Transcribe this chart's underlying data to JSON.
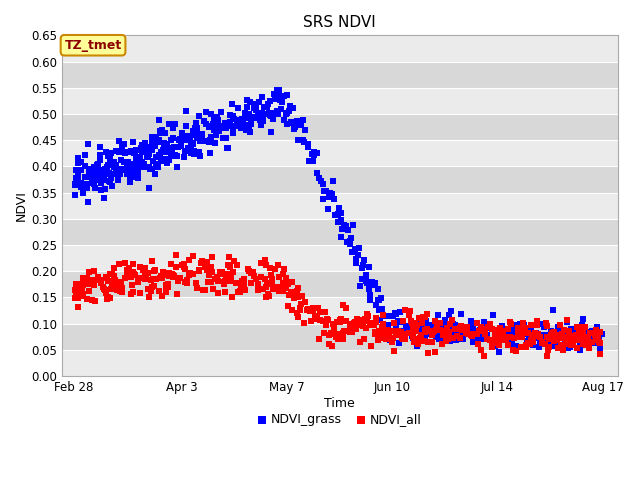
{
  "title": "SRS NDVI",
  "xlabel": "Time",
  "ylabel": "NDVI",
  "ylim": [
    0.0,
    0.65
  ],
  "annotation": "TZ_tmet",
  "annotation_color": "#8b0000",
  "annotation_bg": "#ffff99",
  "annotation_border": "#cc8800",
  "fig_bg": "#ffffff",
  "plot_bg_light": "#ebebeb",
  "plot_bg_dark": "#d8d8d8",
  "grid_color": "#ffffff",
  "red_color": "#ff0000",
  "blue_color": "#0000ff",
  "legend_labels": [
    "NDVI_all",
    "NDVI_grass"
  ],
  "marker_size": 4,
  "x_tick_labels": [
    "Feb 28",
    "Apr 3",
    "May 7",
    "Jun 10",
    "Jul 14",
    "Aug 17"
  ]
}
